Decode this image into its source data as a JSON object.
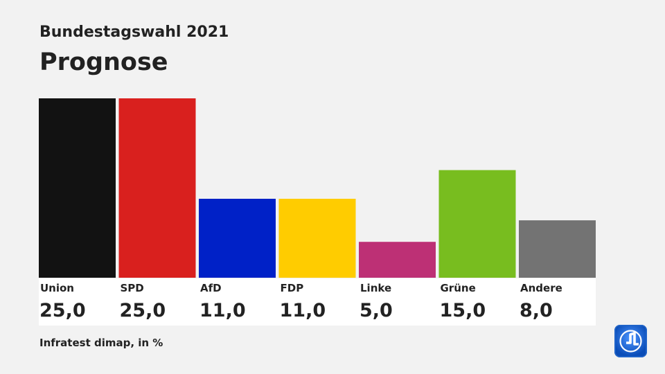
{
  "header": {
    "subtitle": "Bundestagswahl 2021",
    "title": "Prognose"
  },
  "footer": {
    "source": "Infratest dimap, in %"
  },
  "logo": {
    "icon": "ard-tagesschau-logo-icon",
    "color": "#0b3a8f"
  },
  "chart_data": {
    "type": "bar",
    "title": "Prognose",
    "subtitle": "Bundestagswahl 2021",
    "categories": [
      "Union",
      "SPD",
      "AfD",
      "FDP",
      "Linke",
      "Grüne",
      "Andere"
    ],
    "values": [
      25.0,
      25.0,
      11.0,
      11.0,
      5.0,
      15.0,
      8.0
    ],
    "value_labels": [
      "25,0",
      "25,0",
      "11,0",
      "11,0",
      "5,0",
      "15,0",
      "8,0"
    ],
    "colors": [
      "#121212",
      "#d9201e",
      "#0021c7",
      "#ffcc00",
      "#bd3075",
      "#78bd1f",
      "#737373"
    ],
    "ylim": [
      0,
      25
    ],
    "grid": false,
    "legend": "none",
    "xlabel": "",
    "ylabel": ""
  }
}
